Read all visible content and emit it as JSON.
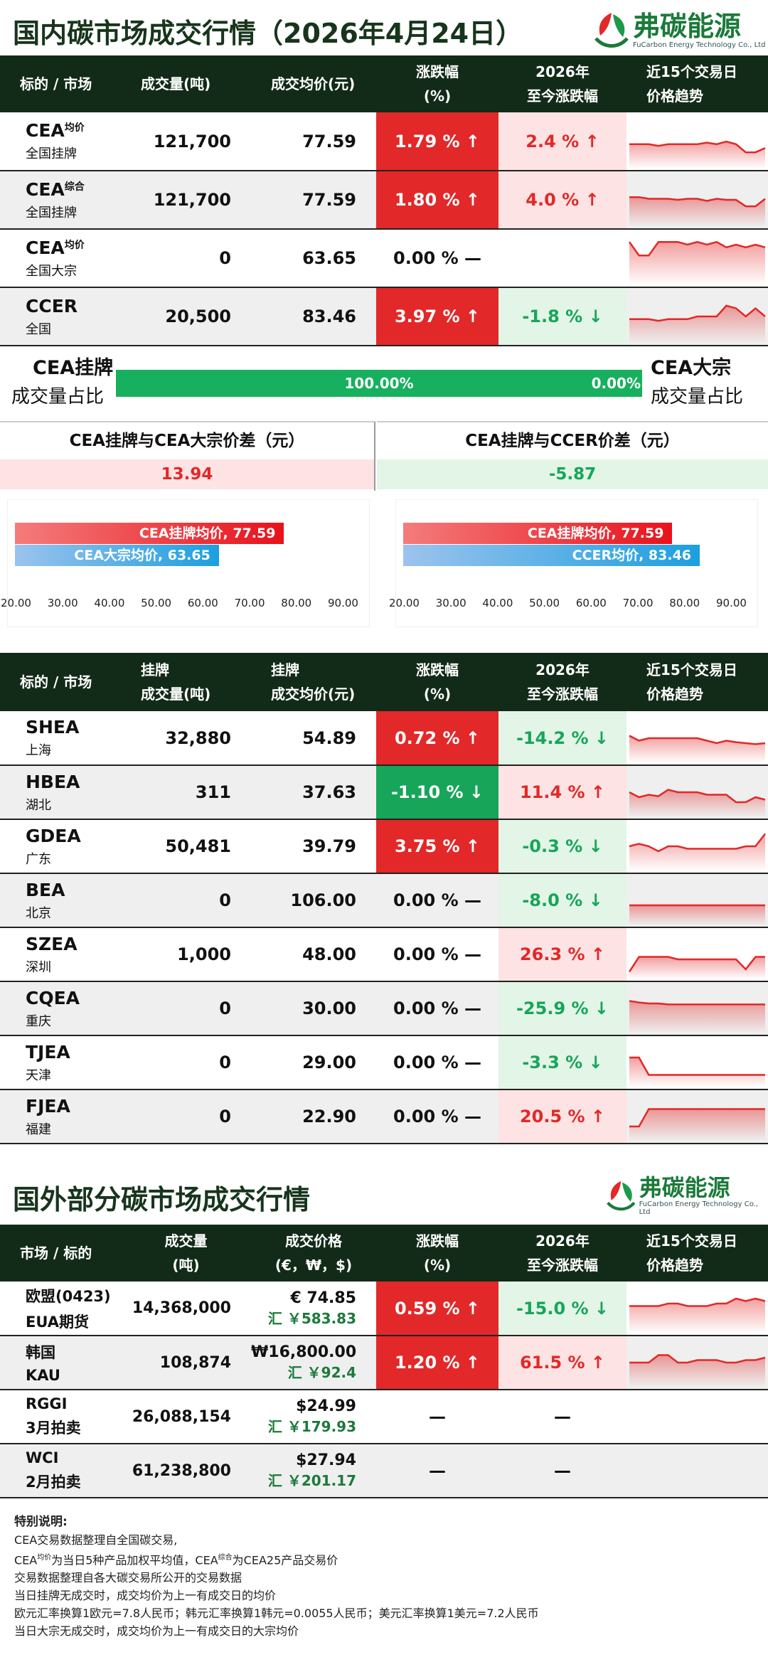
{
  "domestic": {
    "title": "国内碳市场成交行情（2026年4月24日）",
    "headers": {
      "col1": "标的 / 市场",
      "col2": "成交量(吨)",
      "col3": "成交均价(元)",
      "col4a": "涨跌幅",
      "col4b": "(%)",
      "col5a": "2026年",
      "col5b": "至今涨跌幅",
      "col6a": "近15个交易日",
      "col6b": "价格趋势"
    },
    "rows": [
      {
        "name": "CEA",
        "sup": "均价",
        "market": "全国挂牌",
        "volume": "121,700",
        "price": "77.59",
        "change": "1.79 % ↑",
        "dir": "up",
        "ytd": "2.4 % ↑",
        "ytd_dir": "up",
        "trend": [
          0.55,
          0.55,
          0.55,
          0.58,
          0.55,
          0.55,
          0.55,
          0.55,
          0.52,
          0.55,
          0.5,
          0.55,
          0.7,
          0.7,
          0.62
        ]
      },
      {
        "name": "CEA",
        "sup": "综合",
        "market": "全国挂牌",
        "volume": "121,700",
        "price": "77.59",
        "change": "1.80 % ↑",
        "dir": "up",
        "ytd": "4.0 % ↑",
        "ytd_dir": "up",
        "trend": [
          0.45,
          0.45,
          0.48,
          0.48,
          0.48,
          0.5,
          0.48,
          0.48,
          0.52,
          0.48,
          0.5,
          0.5,
          0.62,
          0.62,
          0.48
        ]
      },
      {
        "name": "CEA",
        "sup": "均价",
        "market": "全国大宗",
        "volume": "0",
        "price": "63.65",
        "change": "0.00 % —",
        "dir": "nil",
        "ytd": "",
        "ytd_dir": "nil",
        "trend": [
          0.2,
          0.45,
          0.45,
          0.2,
          0.2,
          0.2,
          0.25,
          0.2,
          0.25,
          0.2,
          0.3,
          0.25,
          0.3,
          0.25,
          0.3
        ]
      },
      {
        "name": "CCER",
        "sup": "",
        "market": "全国",
        "volume": "20,500",
        "price": "83.46",
        "change": "3.97 % ↑",
        "dir": "up",
        "ytd": "-1.8 % ↓",
        "ytd_dir": "dn",
        "trend": [
          0.55,
          0.55,
          0.55,
          0.58,
          0.55,
          0.55,
          0.55,
          0.5,
          0.5,
          0.5,
          0.3,
          0.35,
          0.5,
          0.35,
          0.5
        ]
      }
    ],
    "ratio": {
      "left_a": "CEA挂牌",
      "left_b": "成交量占比",
      "right_a": "CEA大宗",
      "right_b": "成交量占比",
      "left_pct": "100.00%",
      "right_pct": "0.00%",
      "left_share": 1.0
    },
    "spread": {
      "a_title": "CEA挂牌与CEA大宗价差（元）",
      "a_value": "13.94",
      "b_title": "CEA挂牌与CCER价差（元）",
      "b_value": "-5.87"
    },
    "mini_a": {
      "bars": [
        {
          "label": "CEA挂牌均价, 77.59",
          "value": 77.59
        },
        {
          "label": "CEA大宗均价, 63.65",
          "value": 63.65
        }
      ],
      "ticks": [
        "20.00",
        "30.00",
        "40.00",
        "50.00",
        "60.00",
        "70.00",
        "80.00",
        "90.00"
      ]
    },
    "mini_b": {
      "bars": [
        {
          "label": "CEA挂牌均价, 77.59",
          "value": 77.59
        },
        {
          "label": "CCER均价, 83.46",
          "value": 83.46
        }
      ],
      "ticks": [
        "20.00",
        "30.00",
        "40.00",
        "50.00",
        "60.00",
        "70.00",
        "80.00",
        "90.00"
      ]
    }
  },
  "regional": {
    "headers": {
      "col1": "标的 / 市场",
      "col2a": "挂牌",
      "col2b": "成交量(吨)",
      "col3a": "挂牌",
      "col3b": "成交均价(元)",
      "col4a": "涨跌幅",
      "col4b": "(%)",
      "col5a": "2026年",
      "col5b": "至今涨跌幅",
      "col6a": "近15个交易日",
      "col6b": "价格趋势"
    },
    "rows": [
      {
        "name": "SHEA",
        "market": "上海",
        "volume": "32,880",
        "price": "54.89",
        "change": "0.72 % ↑",
        "dir": "up",
        "ytd": "-14.2 % ↓",
        "ytd_dir": "dn",
        "trend": [
          0.45,
          0.55,
          0.5,
          0.5,
          0.5,
          0.5,
          0.5,
          0.5,
          0.55,
          0.6,
          0.55,
          0.58,
          0.6,
          0.62,
          0.6
        ]
      },
      {
        "name": "HBEA",
        "market": "湖北",
        "volume": "311",
        "price": "37.63",
        "change": "-1.10 % ↓",
        "dir": "dn",
        "ytd": "11.4 % ↑",
        "ytd_dir": "up",
        "trend": [
          0.5,
          0.6,
          0.55,
          0.58,
          0.45,
          0.5,
          0.5,
          0.5,
          0.55,
          0.55,
          0.55,
          0.7,
          0.7,
          0.6,
          0.65
        ]
      },
      {
        "name": "GDEA",
        "market": "广东",
        "volume": "50,481",
        "price": "39.79",
        "change": "3.75 % ↑",
        "dir": "up",
        "ytd": "-0.3 % ↓",
        "ytd_dir": "dn",
        "trend": [
          0.5,
          0.45,
          0.5,
          0.6,
          0.5,
          0.5,
          0.55,
          0.55,
          0.55,
          0.55,
          0.55,
          0.55,
          0.5,
          0.5,
          0.25
        ]
      },
      {
        "name": "BEA",
        "market": "北京",
        "volume": "0",
        "price": "106.00",
        "change": "0.00 % —",
        "dir": "nil",
        "ytd": "-8.0 % ↓",
        "ytd_dir": "dn",
        "trend": [
          0.6,
          0.6,
          0.6,
          0.6,
          0.6,
          0.6,
          0.6,
          0.6,
          0.6,
          0.6,
          0.6,
          0.6,
          0.6,
          0.6,
          0.6
        ]
      },
      {
        "name": "SZEA",
        "market": "深圳",
        "volume": "1,000",
        "price": "48.00",
        "change": "0.00 % —",
        "dir": "nil",
        "ytd": "26.3 % ↑",
        "ytd_dir": "up",
        "trend": [
          0.85,
          0.55,
          0.55,
          0.55,
          0.55,
          0.6,
          0.6,
          0.6,
          0.6,
          0.6,
          0.6,
          0.6,
          0.8,
          0.55,
          0.55
        ]
      },
      {
        "name": "CQEA",
        "market": "重庆",
        "volume": "0",
        "price": "30.00",
        "change": "0.00 % —",
        "dir": "nil",
        "ytd": "-25.9 % ↓",
        "ytd_dir": "dn",
        "trend": [
          0.35,
          0.38,
          0.4,
          0.4,
          0.42,
          0.42,
          0.42,
          0.42,
          0.42,
          0.42,
          0.42,
          0.42,
          0.42,
          0.42,
          0.42
        ]
      },
      {
        "name": "TJEA",
        "market": "天津",
        "volume": "0",
        "price": "29.00",
        "change": "0.00 % —",
        "dir": "nil",
        "ytd": "-3.3 % ↓",
        "ytd_dir": "dn",
        "trend": [
          0.4,
          0.4,
          0.75,
          0.75,
          0.75,
          0.75,
          0.75,
          0.75,
          0.75,
          0.75,
          0.75,
          0.75,
          0.75,
          0.75,
          0.75
        ]
      },
      {
        "name": "FJEA",
        "market": "福建",
        "volume": "0",
        "price": "22.90",
        "change": "0.00 % —",
        "dir": "nil",
        "ytd": "20.5 % ↑",
        "ytd_dir": "up",
        "trend": [
          0.7,
          0.7,
          0.35,
          0.35,
          0.35,
          0.35,
          0.35,
          0.35,
          0.35,
          0.35,
          0.35,
          0.35,
          0.35,
          0.35,
          0.35
        ]
      }
    ]
  },
  "foreign": {
    "title": "国外部分碳市场成交行情",
    "headers": {
      "col1": "市场 / 标的",
      "col2a": "成交量",
      "col2b": "(吨)",
      "col3a": "成交价格",
      "col3b": "(€，₩，$)",
      "col4a": "涨跌幅",
      "col4b": "(%)",
      "col5a": "2026年",
      "col5b": "至今涨跌幅",
      "col6a": "近15个交易日",
      "col6b": "价格趋势"
    },
    "rows": [
      {
        "name": "欧盟(0423)",
        "market": "EUA期货",
        "volume": "14,368,000",
        "price": "€ 74.85",
        "fx": "汇 ￥583.83",
        "change": "0.59 % ↑",
        "dir": "up",
        "ytd": "-15.0 % ↓",
        "ytd_dir": "dn",
        "trend": [
          0.45,
          0.45,
          0.45,
          0.45,
          0.4,
          0.4,
          0.45,
          0.45,
          0.45,
          0.4,
          0.4,
          0.3,
          0.35,
          0.3,
          0.35
        ]
      },
      {
        "name": "韩国",
        "market": "KAU",
        "volume": "108,874",
        "price": "₩16,800.00",
        "fx": "汇 ￥92.4",
        "change": "1.20 % ↑",
        "dir": "up",
        "ytd": "61.5 % ↑",
        "ytd_dir": "up",
        "trend": [
          0.5,
          0.5,
          0.5,
          0.35,
          0.35,
          0.5,
          0.5,
          0.45,
          0.45,
          0.45,
          0.5,
          0.5,
          0.45,
          0.45,
          0.4
        ]
      },
      {
        "name": "RGGI",
        "market": "3月拍卖",
        "volume": "26,088,154",
        "price": "$24.99",
        "fx": "汇 ￥179.93",
        "change": "—",
        "dir": "nil",
        "ytd": "—",
        "ytd_dir": "nil",
        "trend": []
      },
      {
        "name": "WCI",
        "market": "2月拍卖",
        "volume": "61,238,800",
        "price": "$27.94",
        "fx": "汇 ￥201.17",
        "change": "—",
        "dir": "nil",
        "ytd": "—",
        "ytd_dir": "nil",
        "trend": []
      }
    ]
  },
  "logo": {
    "brand": "弗碳能源",
    "sub": "FuCarbon Energy Technology Co., Ltd"
  },
  "notes": {
    "title": "特别说明:",
    "l1": "CEA交易数据整理自全国碳交易,",
    "l2a": "CEA",
    "l2sup1": "均价",
    "l2b": "为当日5种产品加权平均值，CEA",
    "l2sup2": "综合",
    "l2c": "为CEA25产品交易价",
    "l3": "交易数据整理自各大碳交易所公开的交易数据",
    "l4": "当日挂牌无成交时，成交均价为上一有成交日的均价",
    "l5": "欧元汇率换算1欧元=7.8人民币；韩元汇率换算1韩元=0.0055人民币；美元汇率换算1美元=7.2人民币",
    "l6": "当日大宗无成交时，成交均价为上一有成交日的大宗均价"
  }
}
